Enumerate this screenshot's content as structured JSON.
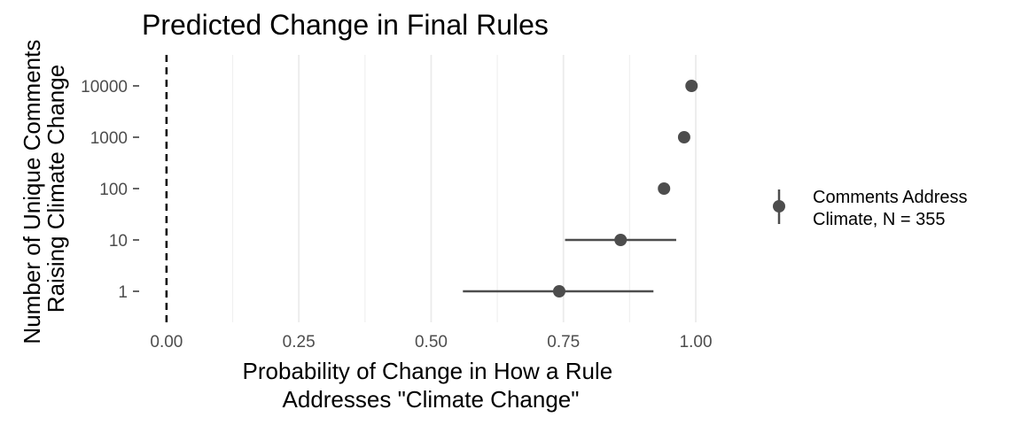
{
  "chart_data": {
    "type": "scatter",
    "title": "Predicted Change in Final Rules",
    "xlabel": [
      "Probability of Change in How a Rule",
      "Addresses \"Climate Change\""
    ],
    "ylabel": [
      "Number of Unique Comments",
      "Raising Climate Change"
    ],
    "x_ticks": [
      {
        "value": 0.0,
        "label": "0.00"
      },
      {
        "value": 0.25,
        "label": "0.25"
      },
      {
        "value": 0.5,
        "label": "0.50"
      },
      {
        "value": 0.75,
        "label": "0.75"
      },
      {
        "value": 1.0,
        "label": "1.00"
      }
    ],
    "y_categories": [
      "1",
      "10",
      "100",
      "1000",
      "10000"
    ],
    "xlim": [
      -0.045,
      1.02
    ],
    "grid": "vertical-major-and-minor",
    "reference_line": {
      "x": 0,
      "style": "dashed"
    },
    "legend": {
      "position": "right",
      "label": [
        "Comments Address",
        "Climate, N = 355"
      ]
    },
    "point_color": "#4d4d4d",
    "series": [
      {
        "points": [
          {
            "y": "1",
            "x": 0.742,
            "lower": 0.56,
            "upper": 0.92
          },
          {
            "y": "10",
            "x": 0.858,
            "lower": 0.753,
            "upper": 0.963
          },
          {
            "y": "100",
            "x": 0.94,
            "lower": 0.94,
            "upper": 0.94
          },
          {
            "y": "1000",
            "x": 0.978,
            "lower": 0.978,
            "upper": 0.978
          },
          {
            "y": "10000",
            "x": 0.992,
            "lower": 0.992,
            "upper": 0.992
          }
        ]
      }
    ]
  }
}
